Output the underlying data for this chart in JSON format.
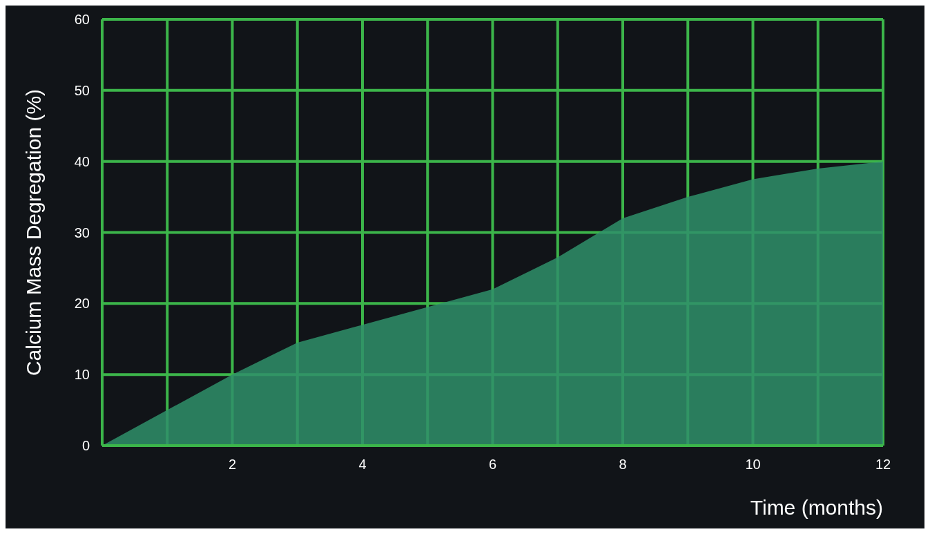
{
  "chart_data": {
    "type": "area",
    "xlabel": "Time (months)",
    "ylabel": "Calcium Mass Degregation (%)",
    "x": [
      0,
      1,
      2,
      3,
      4,
      5,
      6,
      7,
      8,
      9,
      10,
      11,
      12
    ],
    "series": [
      {
        "color": "#2f8f6a",
        "values": [
          0,
          5,
          10,
          14.5,
          17,
          19.5,
          22,
          26.5,
          32,
          35,
          37.5,
          39,
          40
        ]
      }
    ],
    "xlim": [
      0,
      12
    ],
    "ylim": [
      0,
      60
    ],
    "xticks": [
      {
        "value": 0,
        "label": null
      },
      {
        "value": 1,
        "label": null
      },
      2,
      {
        "value": 3,
        "label": null
      },
      4,
      {
        "value": 5,
        "label": null
      },
      6,
      {
        "value": 7,
        "label": null
      },
      8,
      {
        "value": 9,
        "label": null
      },
      10,
      {
        "value": 11,
        "label": null
      },
      12
    ],
    "yticks": [
      0,
      10,
      20,
      30,
      40,
      50,
      60
    ],
    "grid": true,
    "legend": false
  }
}
